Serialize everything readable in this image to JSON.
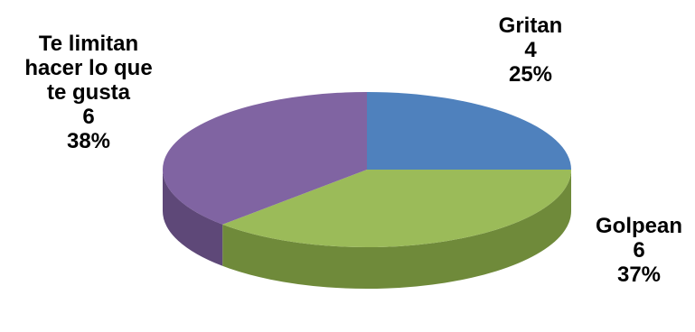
{
  "chart_data": {
    "type": "pie",
    "style": "3d-tilted",
    "title": "",
    "legend": "none",
    "slices": [
      {
        "label_lines": [
          "Gritan"
        ],
        "value": 4,
        "percent": "25%",
        "color": "#4f81bd",
        "side_color": "#3a6396"
      },
      {
        "label_lines": [
          "Golpean"
        ],
        "value": 6,
        "percent": "37%",
        "color": "#9bbb59",
        "side_color": "#6f8a3a"
      },
      {
        "label_lines": [
          "Te limitan",
          "hacer lo que",
          "te gusta"
        ],
        "value": 6,
        "percent": "38%",
        "color": "#8064a2",
        "side_color": "#5e4878"
      }
    ]
  }
}
